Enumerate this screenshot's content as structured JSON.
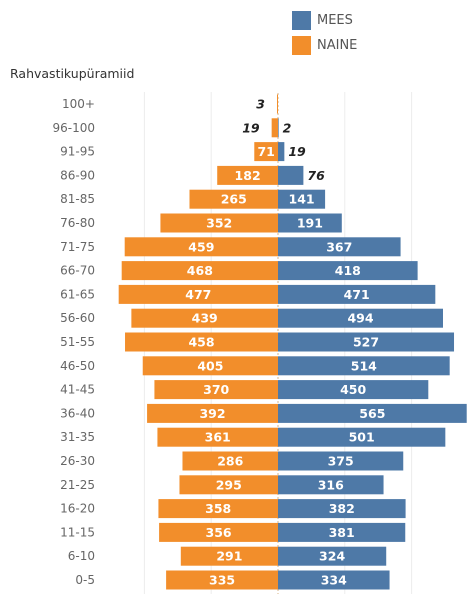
{
  "chart_data": {
    "type": "bar",
    "title": "Rahvastikupüramiid",
    "categories": [
      "100+",
      "96-100",
      "91-95",
      "86-90",
      "81-85",
      "76-80",
      "71-75",
      "66-70",
      "61-65",
      "56-60",
      "51-55",
      "46-50",
      "41-45",
      "36-40",
      "31-35",
      "26-30",
      "21-25",
      "16-20",
      "11-15",
      "6-10",
      "0-5"
    ],
    "series": [
      {
        "name": "NAINE",
        "color": "#F28E2B",
        "side": "left",
        "values": [
          3,
          19,
          71,
          182,
          265,
          352,
          459,
          468,
          477,
          439,
          458,
          405,
          370,
          392,
          361,
          286,
          295,
          358,
          356,
          291,
          335
        ]
      },
      {
        "name": "MEES",
        "color": "#4E79A7",
        "side": "right",
        "values": [
          0,
          2,
          19,
          76,
          141,
          191,
          367,
          418,
          471,
          494,
          527,
          514,
          450,
          565,
          501,
          375,
          316,
          382,
          381,
          324,
          334
        ]
      }
    ],
    "legend_position": "top-right",
    "grid": true
  }
}
